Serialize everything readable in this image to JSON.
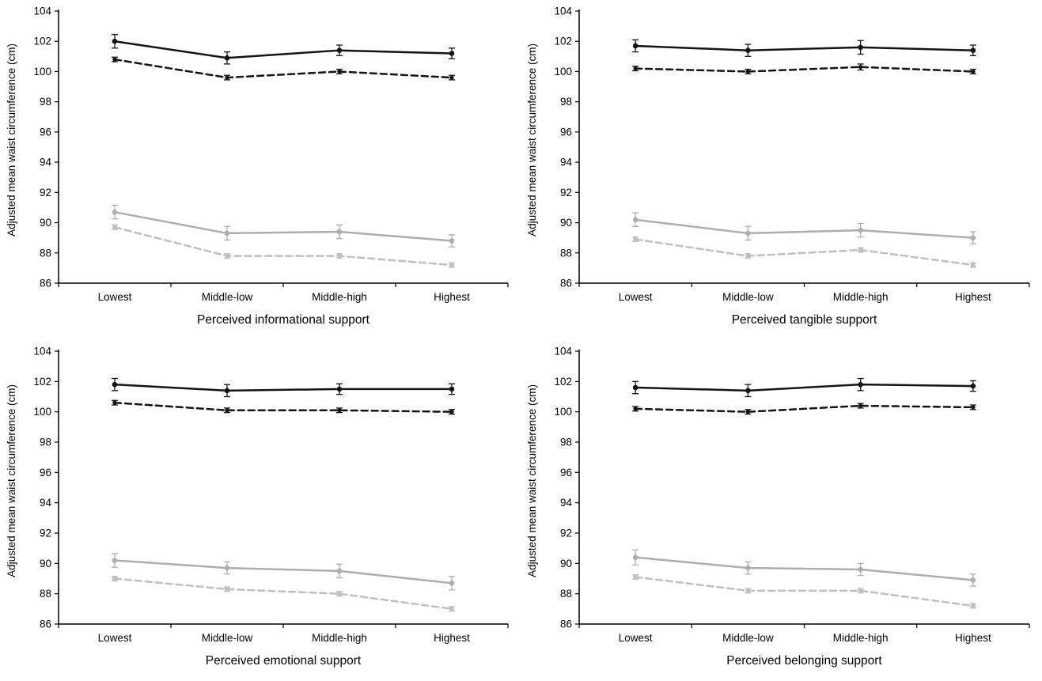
{
  "chart_data": [
    {
      "type": "line",
      "title": "",
      "xlabel": "Perceived informational support",
      "ylabel": "Adjusted mean waist circumference (cm)",
      "categories": [
        "Lowest",
        "Middle-low",
        "Middle-high",
        "Highest"
      ],
      "ylim": [
        86,
        104
      ],
      "ytick_step": 2,
      "grid": false,
      "legend": "none",
      "series": [
        {
          "name": "black-solid",
          "color": "#141414",
          "dash": "solid",
          "marker": "circle",
          "values": [
            102.0,
            100.9,
            101.4,
            101.2
          ],
          "errors": [
            0.45,
            0.4,
            0.35,
            0.35
          ]
        },
        {
          "name": "black-dashed",
          "color": "#141414",
          "dash": "dashed",
          "marker": "circle",
          "values": [
            100.8,
            99.6,
            100.0,
            99.6
          ],
          "errors": [
            0.15,
            0.15,
            0.15,
            0.15
          ]
        },
        {
          "name": "gray-solid",
          "color": "#aeaeae",
          "dash": "solid",
          "marker": "circle",
          "values": [
            90.7,
            89.3,
            89.4,
            88.8
          ],
          "errors": [
            0.45,
            0.45,
            0.45,
            0.4
          ]
        },
        {
          "name": "gray-dashed",
          "color": "#bfbfbf",
          "dash": "dashed",
          "marker": "square",
          "values": [
            89.7,
            87.8,
            87.8,
            87.2
          ],
          "errors": [
            0.15,
            0.15,
            0.15,
            0.15
          ]
        }
      ]
    },
    {
      "type": "line",
      "title": "",
      "xlabel": "Perceived tangible support",
      "ylabel": "Adjusted mean waist circumference (cm)",
      "categories": [
        "Lowest",
        "Middle-low",
        "Middle-high",
        "Highest"
      ],
      "ylim": [
        86,
        104
      ],
      "ytick_step": 2,
      "grid": false,
      "legend": "none",
      "series": [
        {
          "name": "black-solid",
          "color": "#141414",
          "dash": "solid",
          "marker": "circle",
          "values": [
            101.7,
            101.4,
            101.6,
            101.4
          ],
          "errors": [
            0.4,
            0.4,
            0.45,
            0.35
          ]
        },
        {
          "name": "black-dashed",
          "color": "#141414",
          "dash": "dashed",
          "marker": "circle",
          "values": [
            100.2,
            100.0,
            100.3,
            100.0
          ],
          "errors": [
            0.15,
            0.15,
            0.2,
            0.15
          ]
        },
        {
          "name": "gray-solid",
          "color": "#aeaeae",
          "dash": "solid",
          "marker": "circle",
          "values": [
            90.2,
            89.3,
            89.5,
            89.0
          ],
          "errors": [
            0.45,
            0.45,
            0.45,
            0.4
          ]
        },
        {
          "name": "gray-dashed",
          "color": "#bfbfbf",
          "dash": "dashed",
          "marker": "square",
          "values": [
            88.9,
            87.8,
            88.2,
            87.2
          ],
          "errors": [
            0.15,
            0.15,
            0.15,
            0.15
          ]
        }
      ]
    },
    {
      "type": "line",
      "title": "",
      "xlabel": "Perceived emotional support",
      "ylabel": "Adjusted mean waist circumference (cm)",
      "categories": [
        "Lowest",
        "Middle-low",
        "Middle-high",
        "Highest"
      ],
      "ylim": [
        86,
        104
      ],
      "ytick_step": 2,
      "grid": false,
      "legend": "none",
      "series": [
        {
          "name": "black-solid",
          "color": "#141414",
          "dash": "solid",
          "marker": "circle",
          "values": [
            101.8,
            101.4,
            101.5,
            101.5
          ],
          "errors": [
            0.4,
            0.4,
            0.35,
            0.35
          ]
        },
        {
          "name": "black-dashed",
          "color": "#141414",
          "dash": "dashed",
          "marker": "circle",
          "values": [
            100.6,
            100.1,
            100.1,
            100.0
          ],
          "errors": [
            0.15,
            0.15,
            0.15,
            0.15
          ]
        },
        {
          "name": "gray-solid",
          "color": "#aeaeae",
          "dash": "solid",
          "marker": "circle",
          "values": [
            90.2,
            89.7,
            89.5,
            88.7
          ],
          "errors": [
            0.45,
            0.4,
            0.45,
            0.45
          ]
        },
        {
          "name": "gray-dashed",
          "color": "#bfbfbf",
          "dash": "dashed",
          "marker": "square",
          "values": [
            89.0,
            88.3,
            88.0,
            87.0
          ],
          "errors": [
            0.15,
            0.15,
            0.15,
            0.15
          ]
        }
      ]
    },
    {
      "type": "line",
      "title": "",
      "xlabel": "Perceived belonging support",
      "ylabel": "Adjusted mean waist circumference (cm)",
      "categories": [
        "Lowest",
        "Middle-low",
        "Middle-high",
        "Highest"
      ],
      "ylim": [
        86,
        104
      ],
      "ytick_step": 2,
      "grid": false,
      "legend": "none",
      "series": [
        {
          "name": "black-solid",
          "color": "#141414",
          "dash": "solid",
          "marker": "circle",
          "values": [
            101.6,
            101.4,
            101.8,
            101.7
          ],
          "errors": [
            0.4,
            0.4,
            0.4,
            0.35
          ]
        },
        {
          "name": "black-dashed",
          "color": "#141414",
          "dash": "dashed",
          "marker": "circle",
          "values": [
            100.2,
            100.0,
            100.4,
            100.3
          ],
          "errors": [
            0.15,
            0.15,
            0.15,
            0.15
          ]
        },
        {
          "name": "gray-solid",
          "color": "#aeaeae",
          "dash": "solid",
          "marker": "circle",
          "values": [
            90.4,
            89.7,
            89.6,
            88.9
          ],
          "errors": [
            0.5,
            0.4,
            0.4,
            0.4
          ]
        },
        {
          "name": "gray-dashed",
          "color": "#bfbfbf",
          "dash": "dashed",
          "marker": "square",
          "values": [
            89.1,
            88.2,
            88.2,
            87.2
          ],
          "errors": [
            0.15,
            0.15,
            0.15,
            0.15
          ]
        }
      ]
    }
  ]
}
